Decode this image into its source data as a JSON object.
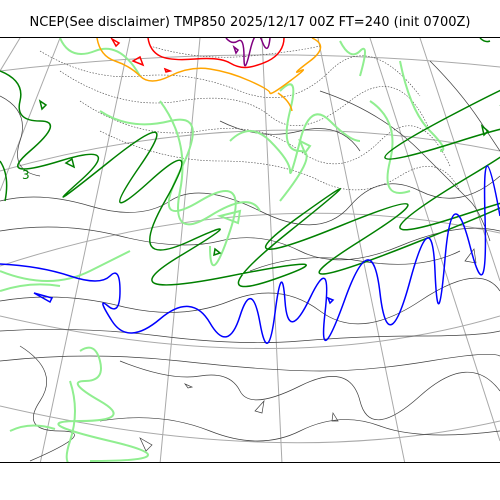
{
  "title": "NCEP(See disclaimer) TMP850 2025/12/17 00Z FT=240 (init 0700Z)",
  "map": {
    "colors": {
      "coastline": "#404040",
      "graticule": "#a9a9a9",
      "isotherm_minus": "#90ee90",
      "isotherm_dark_green": "#008000",
      "isotherm_blue": "#0000ff",
      "isotherm_orange": "#ffa500",
      "isotherm_red": "#ff0000",
      "isotherm_purple": "#800080"
    },
    "contour_labels": [
      {
        "text": "3",
        "color": "#008000"
      }
    ]
  }
}
